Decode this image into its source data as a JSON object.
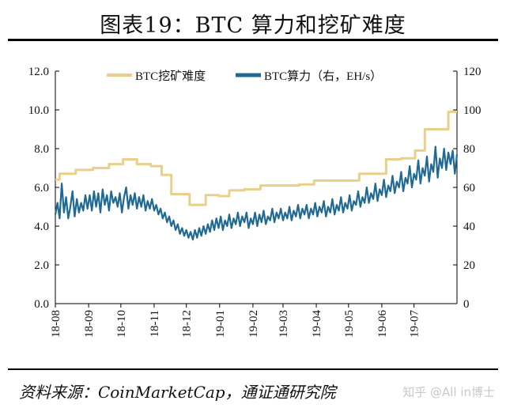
{
  "header": {
    "title": "图表19：BTC 算力和挖矿难度"
  },
  "footer": {
    "source": "资料来源：CoinMarketCap，通证通研究院",
    "watermark": "知乎 @All in博士"
  },
  "chart_data": {
    "type": "line",
    "legend_position": "top",
    "grid": false,
    "x_ticks": [
      "18-08",
      "18-09",
      "18-10",
      "18-11",
      "18-12",
      "19-01",
      "19-02",
      "19-03",
      "19-04",
      "19-05",
      "19-06",
      "19-07"
    ],
    "xlim": [
      "2018-08-01",
      "2019-08-10"
    ],
    "y_left": {
      "ticks": [
        "0.0",
        "2.0",
        "4.0",
        "6.0",
        "8.0",
        "10.0",
        "12.0"
      ],
      "lim": [
        0,
        12
      ]
    },
    "y_right": {
      "ticks": [
        "0",
        "20",
        "40",
        "60",
        "80",
        "100",
        "120"
      ],
      "lim": [
        0,
        120
      ]
    },
    "series": [
      {
        "name": "BTC挖矿难度",
        "axis": "left",
        "color": "#E8CF8A",
        "shape": "step",
        "points": [
          [
            "2018-08-01",
            6.4
          ],
          [
            "2018-08-05",
            6.7
          ],
          [
            "2018-08-20",
            6.9
          ],
          [
            "2018-09-05",
            7.0
          ],
          [
            "2018-09-20",
            7.2
          ],
          [
            "2018-10-03",
            7.45
          ],
          [
            "2018-10-16",
            7.2
          ],
          [
            "2018-10-29",
            7.1
          ],
          [
            "2018-11-08",
            6.65
          ],
          [
            "2018-11-17",
            5.65
          ],
          [
            "2018-12-04",
            5.1
          ],
          [
            "2018-12-19",
            5.6
          ],
          [
            "2018-12-31",
            5.55
          ],
          [
            "2019-01-10",
            5.85
          ],
          [
            "2019-01-24",
            5.9
          ],
          [
            "2019-02-08",
            6.1
          ],
          [
            "2019-02-22",
            6.1
          ],
          [
            "2019-03-08",
            6.1
          ],
          [
            "2019-03-16",
            6.15
          ],
          [
            "2019-03-30",
            6.35
          ],
          [
            "2019-04-13",
            6.35
          ],
          [
            "2019-04-27",
            6.35
          ],
          [
            "2019-05-11",
            6.7
          ],
          [
            "2019-05-24",
            6.7
          ],
          [
            "2019-06-05",
            7.45
          ],
          [
            "2019-06-19",
            7.5
          ],
          [
            "2019-07-02",
            7.9
          ],
          [
            "2019-07-11",
            9.0
          ],
          [
            "2019-07-24",
            9.0
          ],
          [
            "2019-08-02",
            9.9
          ],
          [
            "2019-08-10",
            9.9
          ]
        ]
      },
      {
        "name": "BTC算力（右，EH/s）",
        "axis": "right",
        "color": "#1F6A95",
        "shape": "line",
        "points": [
          [
            "2018-08-01",
            46
          ],
          [
            "2018-08-03",
            52
          ],
          [
            "2018-08-05",
            44
          ],
          [
            "2018-08-07",
            62
          ],
          [
            "2018-08-09",
            47
          ],
          [
            "2018-08-11",
            55
          ],
          [
            "2018-08-13",
            44
          ],
          [
            "2018-08-15",
            50
          ],
          [
            "2018-08-17",
            58
          ],
          [
            "2018-08-19",
            45
          ],
          [
            "2018-08-21",
            54
          ],
          [
            "2018-08-23",
            47
          ],
          [
            "2018-08-25",
            52
          ],
          [
            "2018-08-27",
            48
          ],
          [
            "2018-08-29",
            56
          ],
          [
            "2018-08-31",
            49
          ],
          [
            "2018-09-02",
            56
          ],
          [
            "2018-09-04",
            48
          ],
          [
            "2018-09-06",
            58
          ],
          [
            "2018-09-08",
            50
          ],
          [
            "2018-09-10",
            57
          ],
          [
            "2018-09-12",
            47
          ],
          [
            "2018-09-14",
            59
          ],
          [
            "2018-09-16",
            51
          ],
          [
            "2018-09-18",
            56
          ],
          [
            "2018-09-20",
            48
          ],
          [
            "2018-09-22",
            58
          ],
          [
            "2018-09-24",
            52
          ],
          [
            "2018-09-26",
            55
          ],
          [
            "2018-09-28",
            50
          ],
          [
            "2018-09-30",
            57
          ],
          [
            "2018-10-02",
            47
          ],
          [
            "2018-10-04",
            55
          ],
          [
            "2018-10-06",
            60
          ],
          [
            "2018-10-08",
            49
          ],
          [
            "2018-10-10",
            56
          ],
          [
            "2018-10-12",
            51
          ],
          [
            "2018-10-14",
            57
          ],
          [
            "2018-10-16",
            49
          ],
          [
            "2018-10-18",
            55
          ],
          [
            "2018-10-20",
            50
          ],
          [
            "2018-10-22",
            56
          ],
          [
            "2018-10-24",
            48
          ],
          [
            "2018-10-26",
            53
          ],
          [
            "2018-10-28",
            49
          ],
          [
            "2018-10-30",
            54
          ],
          [
            "2018-11-01",
            48
          ],
          [
            "2018-11-03",
            51
          ],
          [
            "2018-11-05",
            46
          ],
          [
            "2018-11-07",
            49
          ],
          [
            "2018-11-09",
            44
          ],
          [
            "2018-11-11",
            47
          ],
          [
            "2018-11-13",
            42
          ],
          [
            "2018-11-15",
            45
          ],
          [
            "2018-11-17",
            40
          ],
          [
            "2018-11-19",
            43
          ],
          [
            "2018-11-21",
            38
          ],
          [
            "2018-11-23",
            41
          ],
          [
            "2018-11-25",
            36
          ],
          [
            "2018-11-27",
            39
          ],
          [
            "2018-11-29",
            35
          ],
          [
            "2018-12-01",
            38
          ],
          [
            "2018-12-03",
            34
          ],
          [
            "2018-12-05",
            37
          ],
          [
            "2018-12-07",
            33
          ],
          [
            "2018-12-09",
            38
          ],
          [
            "2018-12-11",
            34
          ],
          [
            "2018-12-13",
            39
          ],
          [
            "2018-12-15",
            35
          ],
          [
            "2018-12-17",
            40
          ],
          [
            "2018-12-19",
            36
          ],
          [
            "2018-12-21",
            41
          ],
          [
            "2018-12-23",
            37
          ],
          [
            "2018-12-25",
            43
          ],
          [
            "2018-12-27",
            38
          ],
          [
            "2018-12-29",
            44
          ],
          [
            "2018-12-31",
            39
          ],
          [
            "2019-01-02",
            45
          ],
          [
            "2019-01-04",
            38
          ],
          [
            "2019-01-06",
            43
          ],
          [
            "2019-01-08",
            40
          ],
          [
            "2019-01-10",
            46
          ],
          [
            "2019-01-12",
            39
          ],
          [
            "2019-01-14",
            44
          ],
          [
            "2019-01-16",
            41
          ],
          [
            "2019-01-18",
            47
          ],
          [
            "2019-01-20",
            40
          ],
          [
            "2019-01-22",
            45
          ],
          [
            "2019-01-24",
            42
          ],
          [
            "2019-01-26",
            47
          ],
          [
            "2019-01-28",
            39
          ],
          [
            "2019-01-30",
            44
          ],
          [
            "2019-02-01",
            41
          ],
          [
            "2019-02-03",
            47
          ],
          [
            "2019-02-05",
            40
          ],
          [
            "2019-02-07",
            46
          ],
          [
            "2019-02-09",
            42
          ],
          [
            "2019-02-11",
            48
          ],
          [
            "2019-02-13",
            41
          ],
          [
            "2019-02-15",
            45
          ],
          [
            "2019-02-17",
            43
          ],
          [
            "2019-02-19",
            49
          ],
          [
            "2019-02-21",
            42
          ],
          [
            "2019-02-23",
            47
          ],
          [
            "2019-02-25",
            44
          ],
          [
            "2019-02-27",
            49
          ],
          [
            "2019-03-01",
            43
          ],
          [
            "2019-03-03",
            47
          ],
          [
            "2019-03-05",
            44
          ],
          [
            "2019-03-07",
            50
          ],
          [
            "2019-03-09",
            43
          ],
          [
            "2019-03-11",
            48
          ],
          [
            "2019-03-13",
            45
          ],
          [
            "2019-03-15",
            51
          ],
          [
            "2019-03-17",
            44
          ],
          [
            "2019-03-19",
            49
          ],
          [
            "2019-03-21",
            46
          ],
          [
            "2019-03-23",
            51
          ],
          [
            "2019-03-25",
            44
          ],
          [
            "2019-03-27",
            49
          ],
          [
            "2019-03-29",
            46
          ],
          [
            "2019-03-31",
            52
          ],
          [
            "2019-04-02",
            45
          ],
          [
            "2019-04-04",
            50
          ],
          [
            "2019-04-06",
            47
          ],
          [
            "2019-04-08",
            53
          ],
          [
            "2019-04-10",
            45
          ],
          [
            "2019-04-12",
            50
          ],
          [
            "2019-04-14",
            47
          ],
          [
            "2019-04-16",
            54
          ],
          [
            "2019-04-18",
            46
          ],
          [
            "2019-04-20",
            51
          ],
          [
            "2019-04-22",
            48
          ],
          [
            "2019-04-24",
            55
          ],
          [
            "2019-04-26",
            47
          ],
          [
            "2019-04-28",
            52
          ],
          [
            "2019-04-30",
            49
          ],
          [
            "2019-05-02",
            56
          ],
          [
            "2019-05-04",
            48
          ],
          [
            "2019-05-06",
            53
          ],
          [
            "2019-05-08",
            51
          ],
          [
            "2019-05-10",
            58
          ],
          [
            "2019-05-12",
            50
          ],
          [
            "2019-05-14",
            55
          ],
          [
            "2019-05-16",
            52
          ],
          [
            "2019-05-18",
            60
          ],
          [
            "2019-05-20",
            52
          ],
          [
            "2019-05-22",
            57
          ],
          [
            "2019-05-24",
            54
          ],
          [
            "2019-05-26",
            62
          ],
          [
            "2019-05-28",
            53
          ],
          [
            "2019-05-30",
            59
          ],
          [
            "2019-06-01",
            56
          ],
          [
            "2019-06-03",
            64
          ],
          [
            "2019-06-05",
            55
          ],
          [
            "2019-06-07",
            61
          ],
          [
            "2019-06-09",
            58
          ],
          [
            "2019-06-11",
            66
          ],
          [
            "2019-06-13",
            57
          ],
          [
            "2019-06-15",
            63
          ],
          [
            "2019-06-17",
            60
          ],
          [
            "2019-06-19",
            68
          ],
          [
            "2019-06-21",
            58
          ],
          [
            "2019-06-23",
            65
          ],
          [
            "2019-06-25",
            62
          ],
          [
            "2019-06-27",
            71
          ],
          [
            "2019-06-29",
            60
          ],
          [
            "2019-07-01",
            67
          ],
          [
            "2019-07-03",
            64
          ],
          [
            "2019-07-05",
            74
          ],
          [
            "2019-07-07",
            62
          ],
          [
            "2019-07-09",
            70
          ],
          [
            "2019-07-11",
            66
          ],
          [
            "2019-07-13",
            76
          ],
          [
            "2019-07-15",
            63
          ],
          [
            "2019-07-17",
            72
          ],
          [
            "2019-07-19",
            68
          ],
          [
            "2019-07-21",
            81
          ],
          [
            "2019-07-23",
            65
          ],
          [
            "2019-07-25",
            75
          ],
          [
            "2019-07-27",
            70
          ],
          [
            "2019-07-29",
            80
          ],
          [
            "2019-07-31",
            69
          ],
          [
            "2019-08-02",
            78
          ],
          [
            "2019-08-04",
            72
          ],
          [
            "2019-08-06",
            79
          ],
          [
            "2019-08-08",
            67
          ],
          [
            "2019-08-10",
            77
          ]
        ]
      }
    ]
  }
}
